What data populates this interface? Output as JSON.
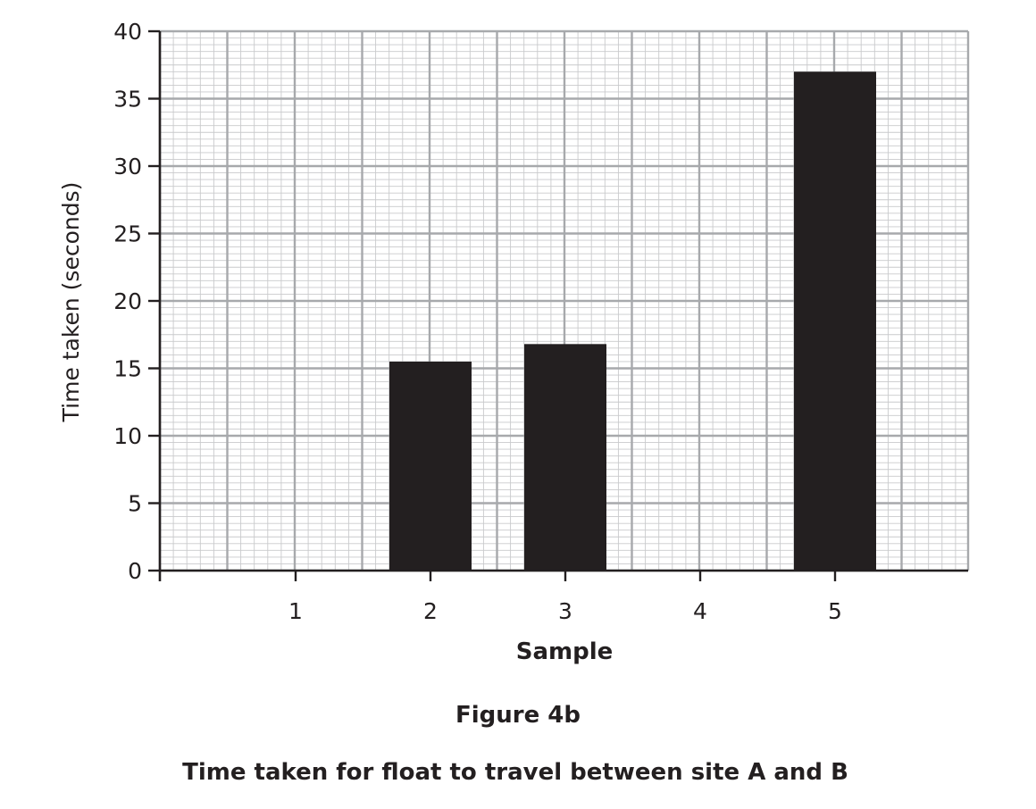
{
  "chart_data": {
    "type": "bar",
    "categories": [
      "1",
      "2",
      "3",
      "4",
      "5"
    ],
    "values": [
      0,
      15.5,
      16.8,
      0,
      37
    ],
    "xlabel": "Sample",
    "ylabel": "Time taken (seconds)",
    "ylim": [
      0,
      40
    ],
    "yticks": [
      "0",
      "5",
      "10",
      "15",
      "20",
      "25",
      "30",
      "35",
      "40"
    ],
    "grid": true,
    "bar_color": "#231f20"
  },
  "captions": {
    "figure_label": "Figure 4b",
    "title": "Time taken for float to travel between site A and B"
  }
}
